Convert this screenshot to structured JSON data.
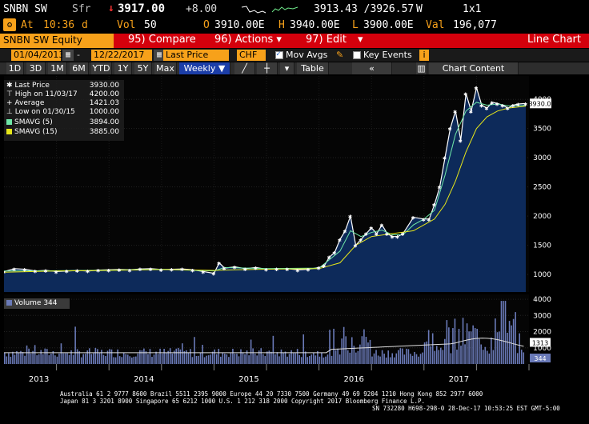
{
  "ticker": {
    "symbol": "SNBN SW",
    "currency": "Sfr",
    "arrow": "↓",
    "last_price": "3917.00",
    "change": "+8.00",
    "bid_ask": "3913.43 /3926.57",
    "bid_ask_suffix": "W",
    "size": "1x1",
    "at_label": "At",
    "time": "10:36",
    "time_suffix": "d",
    "vol_label": "Vol",
    "vol": "50",
    "open_label": "O",
    "open": "3910.00E",
    "high_label": "H",
    "high": "3940.00E",
    "low_label": "L",
    "low": "3900.00E",
    "val_label": "Val",
    "val": "196,077"
  },
  "menu": {
    "equity": "SNBN SW Equity",
    "compare": "95) Compare",
    "actions": "96) Actions ▾",
    "edit": "97) Edit",
    "title": "Line Chart"
  },
  "range": {
    "start": "01/04/2013",
    "end": "12/22/2017",
    "field": "Last Price",
    "currency": "CHF",
    "mov_avgs": "Mov Avgs",
    "key_events": "Key Events",
    "key_events_badge": "i"
  },
  "periods": {
    "items": [
      "1D",
      "3D",
      "1M",
      "6M",
      "YTD",
      "1Y",
      "5Y",
      "Max"
    ],
    "frequency": "Weekly ▼",
    "table": "Table",
    "chart_content": "Chart Content",
    "collapse": "«"
  },
  "legend": {
    "last_price_label": "Last Price",
    "last_price": "3930.00",
    "high_label": "High on 11/03/17",
    "high": "4200.00",
    "average_label": "Average",
    "average": "1421.03",
    "low_label": "Low on 01/30/15",
    "low": "1000.00",
    "sma5_label": "SMAVG (5)",
    "sma5": "3894.00",
    "sma15_label": "SMAVG (15)",
    "sma15": "3885.00"
  },
  "volume": {
    "label": "Volume 344",
    "current": "344",
    "avg": "1313"
  },
  "colors": {
    "orange": "#f7a11a",
    "red": "#d4000c",
    "price_line": "#ffffff",
    "sma5": "#6fe8a8",
    "sma15": "#e6e61a",
    "area": "#0d2a5a"
  },
  "chart_data": {
    "type": "line",
    "y_ticks": [
      "1000",
      "1500",
      "2000",
      "2500",
      "3000",
      "3500",
      "4000"
    ],
    "ylim": [
      700,
      4400
    ],
    "last_label": "3930.00",
    "x_labels": [
      "2013",
      "2014",
      "2015",
      "2016",
      "2017"
    ],
    "series": [
      {
        "name": "Last Price",
        "x": [
          2013.0,
          2013.1,
          2013.2,
          2013.3,
          2013.4,
          2013.5,
          2013.6,
          2013.7,
          2013.8,
          2013.9,
          2014.0,
          2014.1,
          2014.2,
          2014.3,
          2014.4,
          2014.5,
          2014.6,
          2014.7,
          2014.8,
          2014.9,
          2015.0,
          2015.05,
          2015.1,
          2015.2,
          2015.3,
          2015.4,
          2015.5,
          2015.6,
          2015.7,
          2015.8,
          2015.9,
          2016.0,
          2016.05,
          2016.1,
          2016.15,
          2016.2,
          2016.25,
          2016.3,
          2016.35,
          2016.4,
          2016.45,
          2016.5,
          2016.55,
          2016.6,
          2016.65,
          2016.7,
          2016.75,
          2016.8,
          2016.9,
          2017.0,
          2017.05,
          2017.1,
          2017.15,
          2017.2,
          2017.25,
          2017.3,
          2017.35,
          2017.4,
          2017.45,
          2017.5,
          2017.55,
          2017.6,
          2017.65,
          2017.7,
          2017.75,
          2017.8,
          2017.85,
          2017.9,
          2017.97
        ],
        "values": [
          1050,
          1100,
          1090,
          1060,
          1070,
          1050,
          1060,
          1070,
          1060,
          1075,
          1080,
          1085,
          1080,
          1095,
          1100,
          1085,
          1090,
          1095,
          1080,
          1050,
          1020,
          1200,
          1110,
          1130,
          1100,
          1120,
          1090,
          1100,
          1100,
          1080,
          1090,
          1120,
          1150,
          1300,
          1380,
          1600,
          1750,
          2000,
          1500,
          1600,
          1700,
          1800,
          1700,
          1850,
          1700,
          1650,
          1650,
          1700,
          1980,
          1950,
          1950,
          2200,
          2500,
          3000,
          3500,
          3800,
          3300,
          4100,
          3800,
          4200,
          3900,
          3850,
          3950,
          3930,
          3900,
          3850,
          3900,
          3920,
          3930
        ]
      },
      {
        "name": "SMAVG (5)",
        "x": [
          2013.0,
          2013.5,
          2014.0,
          2014.5,
          2015.0,
          2015.1,
          2015.5,
          2016.0,
          2016.2,
          2016.3,
          2016.4,
          2016.5,
          2016.6,
          2016.7,
          2016.8,
          2016.9,
          2017.0,
          2017.1,
          2017.2,
          2017.3,
          2017.4,
          2017.5,
          2017.6,
          2017.7,
          2017.8,
          2017.97
        ],
        "values": [
          1060,
          1065,
          1075,
          1090,
          1060,
          1120,
          1100,
          1110,
          1400,
          1750,
          1650,
          1720,
          1760,
          1680,
          1680,
          1850,
          1950,
          2100,
          2700,
          3400,
          3800,
          3950,
          3900,
          3920,
          3890,
          3894
        ]
      },
      {
        "name": "SMAVG (15)",
        "x": [
          2013.0,
          2013.5,
          2014.0,
          2014.5,
          2015.0,
          2015.2,
          2015.5,
          2016.0,
          2016.2,
          2016.35,
          2016.5,
          2016.7,
          2016.9,
          2017.0,
          2017.1,
          2017.2,
          2017.3,
          2017.4,
          2017.5,
          2017.6,
          2017.7,
          2017.8,
          2017.97
        ],
        "values": [
          1040,
          1060,
          1070,
          1085,
          1070,
          1080,
          1090,
          1100,
          1200,
          1500,
          1650,
          1700,
          1750,
          1850,
          1950,
          2200,
          2600,
          3100,
          3500,
          3700,
          3800,
          3850,
          3885
        ]
      }
    ],
    "volume": {
      "y_ticks": [
        "1000",
        "2000",
        "3000",
        "4000"
      ],
      "ylim": [
        0,
        4300
      ]
    }
  },
  "footer": {
    "line1": "Australia 61 2 9777 8600 Brazil 5511 2395 9000 Europe 44 20 7330 7500 Germany 49 69 9204 1210 Hong Kong 852 2977 6000",
    "line2": "Japan 81 3 3201 8900         Singapore 65 6212 1000        U.S. 1 212 318 2000          Copyright 2017 Bloomberg Finance L.P.",
    "line3": "SN 732280 H698-298-0 28-Dec-17 10:53:25 EST  GMT-5:00"
  }
}
